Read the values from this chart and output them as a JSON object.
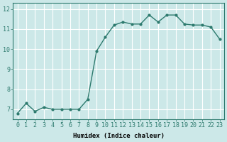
{
  "title": "",
  "xlabel": "Humidex (Indice chaleur)",
  "ylabel": "",
  "x": [
    0,
    1,
    2,
    3,
    4,
    5,
    6,
    7,
    8,
    9,
    10,
    11,
    12,
    13,
    14,
    15,
    16,
    17,
    18,
    19,
    20,
    21,
    22,
    23
  ],
  "y": [
    6.8,
    7.3,
    6.9,
    7.1,
    7.0,
    7.0,
    7.0,
    7.0,
    7.5,
    9.9,
    10.6,
    11.2,
    11.35,
    11.25,
    11.25,
    11.7,
    11.35,
    11.7,
    11.7,
    11.25,
    11.2,
    11.2,
    11.1,
    10.5
  ],
  "line_color": "#2d7a6e",
  "marker": "o",
  "marker_size": 2.0,
  "bg_color": "#cce8e8",
  "grid_color": "#ffffff",
  "ylim": [
    6.5,
    12.3
  ],
  "xlim": [
    -0.5,
    23.5
  ],
  "yticks": [
    7,
    8,
    9,
    10,
    11,
    12
  ],
  "xtick_labels": [
    "0",
    "1",
    "2",
    "3",
    "4",
    "5",
    "6",
    "7",
    "8",
    "9",
    "10",
    "11",
    "12",
    "13",
    "14",
    "15",
    "16",
    "17",
    "18",
    "19",
    "20",
    "21",
    "22",
    "23"
  ],
  "axis_fontsize": 6.5,
  "tick_fontsize": 6.0,
  "line_width": 1.0
}
